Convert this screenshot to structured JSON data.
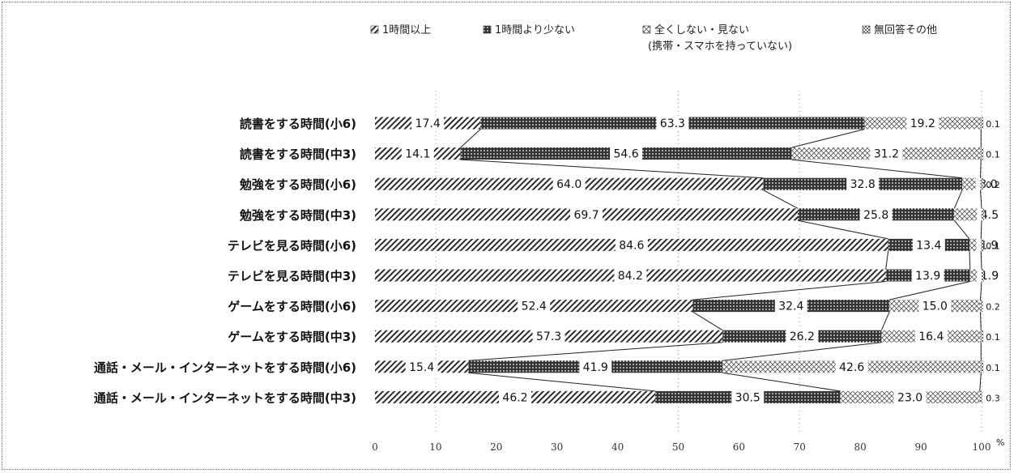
{
  "chart_data": {
    "type": "bar",
    "stacked": true,
    "orientation": "horizontal",
    "title": "",
    "xlabel": "",
    "ylabel": "",
    "unit": "%",
    "xlim": [
      0,
      100
    ],
    "xticks": [
      "0",
      "10",
      "20",
      "30",
      "40",
      "50",
      "60",
      "70",
      "80",
      "90",
      "100"
    ],
    "legend": {
      "placement": "top",
      "items": [
        {
          "label": "1時間以上",
          "pattern": "diagonal-hatch"
        },
        {
          "label": "1時間より少ない",
          "pattern": "dark-dotted"
        },
        {
          "label": "全くしない・見ない",
          "sublabel": "(携帯・スマホを持っていない)",
          "pattern": "cross-hatch"
        },
        {
          "label": "無回答その他",
          "pattern": "light-check"
        }
      ]
    },
    "categories": [
      "読書をする時間(小6)",
      "読書をする時間(中3)",
      "勉強をする時間(小6)",
      "勉強をする時間(中3)",
      "テレビを見る時間(小6)",
      "テレビを見る時間(中3)",
      "ゲームをする時間(小6)",
      "ゲームをする時間(中3)",
      "通話・メール・インターネットをする時間(小6)",
      "通話・メール・インターネットをする時間(中3)"
    ],
    "series": [
      {
        "name": "1時間以上",
        "values": [
          17.4,
          14.1,
          64.0,
          69.7,
          84.6,
          84.2,
          52.4,
          57.3,
          15.4,
          46.2
        ]
      },
      {
        "name": "1時間より少ない",
        "values": [
          63.3,
          54.6,
          32.8,
          25.8,
          13.4,
          13.9,
          32.4,
          26.2,
          41.9,
          30.5
        ]
      },
      {
        "name": "全くしない・見ない(携帯・スマホを持っていない)",
        "values": [
          19.2,
          31.2,
          3.0,
          4.5,
          1.9,
          1.9,
          15.0,
          16.4,
          42.6,
          23.0
        ]
      },
      {
        "name": "無回答その他",
        "values": [
          0.1,
          0.1,
          0.2,
          0.0,
          0.1,
          0.0,
          0.2,
          0.1,
          0.1,
          0.3
        ]
      }
    ],
    "labels": [
      [
        "17.4",
        "63.3",
        "19.2",
        "0.1"
      ],
      [
        "14.1",
        "54.6",
        "31.2",
        "0.1"
      ],
      [
        "64.0",
        "32.8",
        "3.0",
        "0.2"
      ],
      [
        "69.7",
        "25.8",
        "4.5",
        ""
      ],
      [
        "84.6",
        "13.4",
        "1.9",
        "0.1"
      ],
      [
        "84.2",
        "13.9",
        "1.9",
        ""
      ],
      [
        "52.4",
        "32.4",
        "15.0",
        "0.2"
      ],
      [
        "57.3",
        "26.2",
        "16.4",
        "0.1"
      ],
      [
        "15.4",
        "41.9",
        "42.6",
        "0.1"
      ],
      [
        "46.2",
        "30.5",
        "23.0",
        "0.3"
      ]
    ],
    "colors": {
      "background": "#ffffff",
      "ink": "#111111",
      "hatch": "#3a3a3a",
      "grid": "#999999"
    },
    "grid": "dotted vertical at 10, 50, 70, 100"
  }
}
